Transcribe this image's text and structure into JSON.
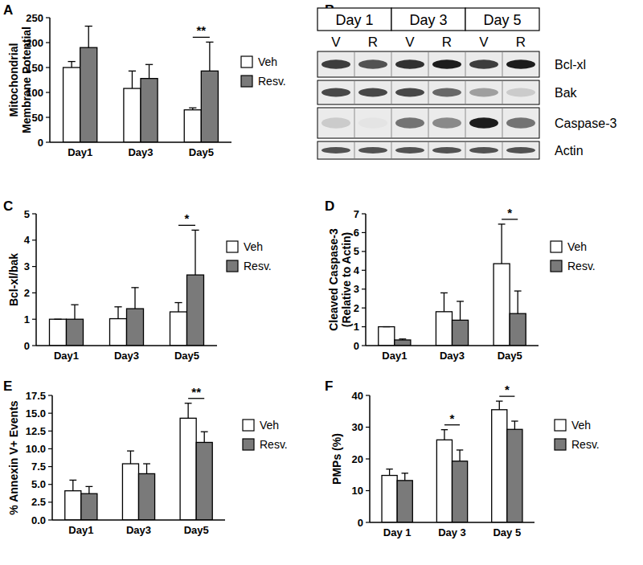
{
  "chart_data": [
    {
      "type": "bar",
      "panel": "A",
      "ylabel": [
        "Mitochondrial",
        "Membrane Potential"
      ],
      "categories": [
        "Day1",
        "Day3",
        "Day5"
      ],
      "series": [
        {
          "name": "Veh",
          "color": "#ffffff",
          "values": [
            150,
            108,
            65
          ],
          "errors": [
            12,
            35,
            4
          ]
        },
        {
          "name": "Resv.",
          "color": "#7a7a7a",
          "values": [
            190,
            128,
            143
          ],
          "errors": [
            43,
            28,
            58
          ]
        }
      ],
      "ylim": [
        0,
        250
      ],
      "yticks": [
        0,
        50,
        100,
        150,
        200,
        250
      ],
      "grid": false,
      "legend": "right",
      "annotations": [
        {
          "category": "Day5",
          "label": "**"
        }
      ]
    },
    {
      "type": "bar",
      "panel": "C",
      "ylabel": "Bcl-xl/bak",
      "categories": [
        "Day1",
        "Day3",
        "Day5"
      ],
      "series": [
        {
          "name": "Veh",
          "color": "#ffffff",
          "values": [
            1,
            1.02,
            1.28
          ],
          "errors": [
            0,
            0.45,
            0.35
          ]
        },
        {
          "name": "Resv.",
          "color": "#7a7a7a",
          "values": [
            1,
            1.4,
            2.68
          ],
          "errors": [
            0.55,
            0.8,
            1.7
          ]
        }
      ],
      "ylim": [
        0,
        5
      ],
      "yticks": [
        0,
        1,
        2,
        3,
        4,
        5
      ],
      "grid": false,
      "legend": "right",
      "annotations": [
        {
          "category": "Day5",
          "label": "*"
        }
      ]
    },
    {
      "type": "bar",
      "panel": "D",
      "ylabel": [
        "Cleaved Caspase-3",
        "(Relative to Actin)"
      ],
      "categories": [
        "Day1",
        "Day3",
        "Day5"
      ],
      "series": [
        {
          "name": "Veh",
          "color": "#ffffff",
          "values": [
            1,
            1.8,
            4.35
          ],
          "errors": [
            0,
            1,
            2.1
          ]
        },
        {
          "name": "Resv.",
          "color": "#7a7a7a",
          "values": [
            0.3,
            1.35,
            1.7
          ],
          "errors": [
            0.05,
            1,
            1.2
          ]
        }
      ],
      "ylim": [
        0,
        7
      ],
      "yticks": [
        0,
        1,
        2,
        3,
        4,
        5,
        6,
        7
      ],
      "grid": false,
      "legend": "right",
      "annotations": [
        {
          "category": "Day5",
          "label": "*"
        }
      ]
    },
    {
      "type": "bar",
      "panel": "E",
      "ylabel": "% Annexin V+ Events",
      "categories": [
        "Day1",
        "Day3",
        "Day5"
      ],
      "series": [
        {
          "name": "Veh",
          "color": "#ffffff",
          "values": [
            4.1,
            7.9,
            14.3
          ],
          "errors": [
            1.5,
            1.8,
            2.1
          ]
        },
        {
          "name": "Resv.",
          "color": "#7a7a7a",
          "values": [
            3.7,
            6.5,
            10.9
          ],
          "errors": [
            1,
            1.4,
            1.5
          ]
        }
      ],
      "ylim": [
        0,
        17.5
      ],
      "yticks": [
        {
          "value": 0,
          "label": "0.0"
        },
        2.5,
        {
          "value": 5,
          "label": "5.0"
        },
        7.5,
        {
          "value": 10,
          "label": "10.0"
        },
        12.5,
        {
          "value": 15,
          "label": "15.0"
        },
        17.5
      ],
      "grid": false,
      "legend": "right",
      "annotations": [
        {
          "category": "Day5",
          "label": "**"
        }
      ]
    },
    {
      "type": "bar",
      "panel": "F",
      "ylabel": "PMPs (%)",
      "categories": [
        "Day 1",
        "Day 3",
        "Day 5"
      ],
      "series": [
        {
          "name": "Veh",
          "color": "#ffffff",
          "values": [
            14.8,
            26,
            35.5
          ],
          "errors": [
            2,
            3.2,
            2.7
          ]
        },
        {
          "name": "Resv.",
          "color": "#7a7a7a",
          "values": [
            13.2,
            19.3,
            29.3
          ],
          "errors": [
            2.3,
            3.5,
            2.6
          ]
        }
      ],
      "ylim": [
        0,
        40
      ],
      "yticks": [
        0,
        10,
        20,
        30,
        40
      ],
      "grid": false,
      "legend": "right",
      "annotations": [
        {
          "category": "Day 3",
          "label": "*"
        },
        {
          "category": "Day 5",
          "label": "*"
        }
      ]
    }
  ],
  "blot": {
    "panel": "B",
    "days": [
      "Day 1",
      "Day 3",
      "Day 5"
    ],
    "lanes": [
      "V",
      "R",
      "V",
      "R",
      "V",
      "R"
    ],
    "proteins": [
      "Bcl-xl",
      "Bak",
      "Caspase-3",
      "Actin"
    ],
    "intensity": [
      [
        0.8,
        0.7,
        0.85,
        0.95,
        0.8,
        0.95
      ],
      [
        0.75,
        0.75,
        0.75,
        0.6,
        0.35,
        0.15
      ],
      [
        0.15,
        0.03,
        0.55,
        0.45,
        0.95,
        0.55
      ],
      [
        0.7,
        0.7,
        0.7,
        0.7,
        0.7,
        0.7
      ]
    ]
  }
}
